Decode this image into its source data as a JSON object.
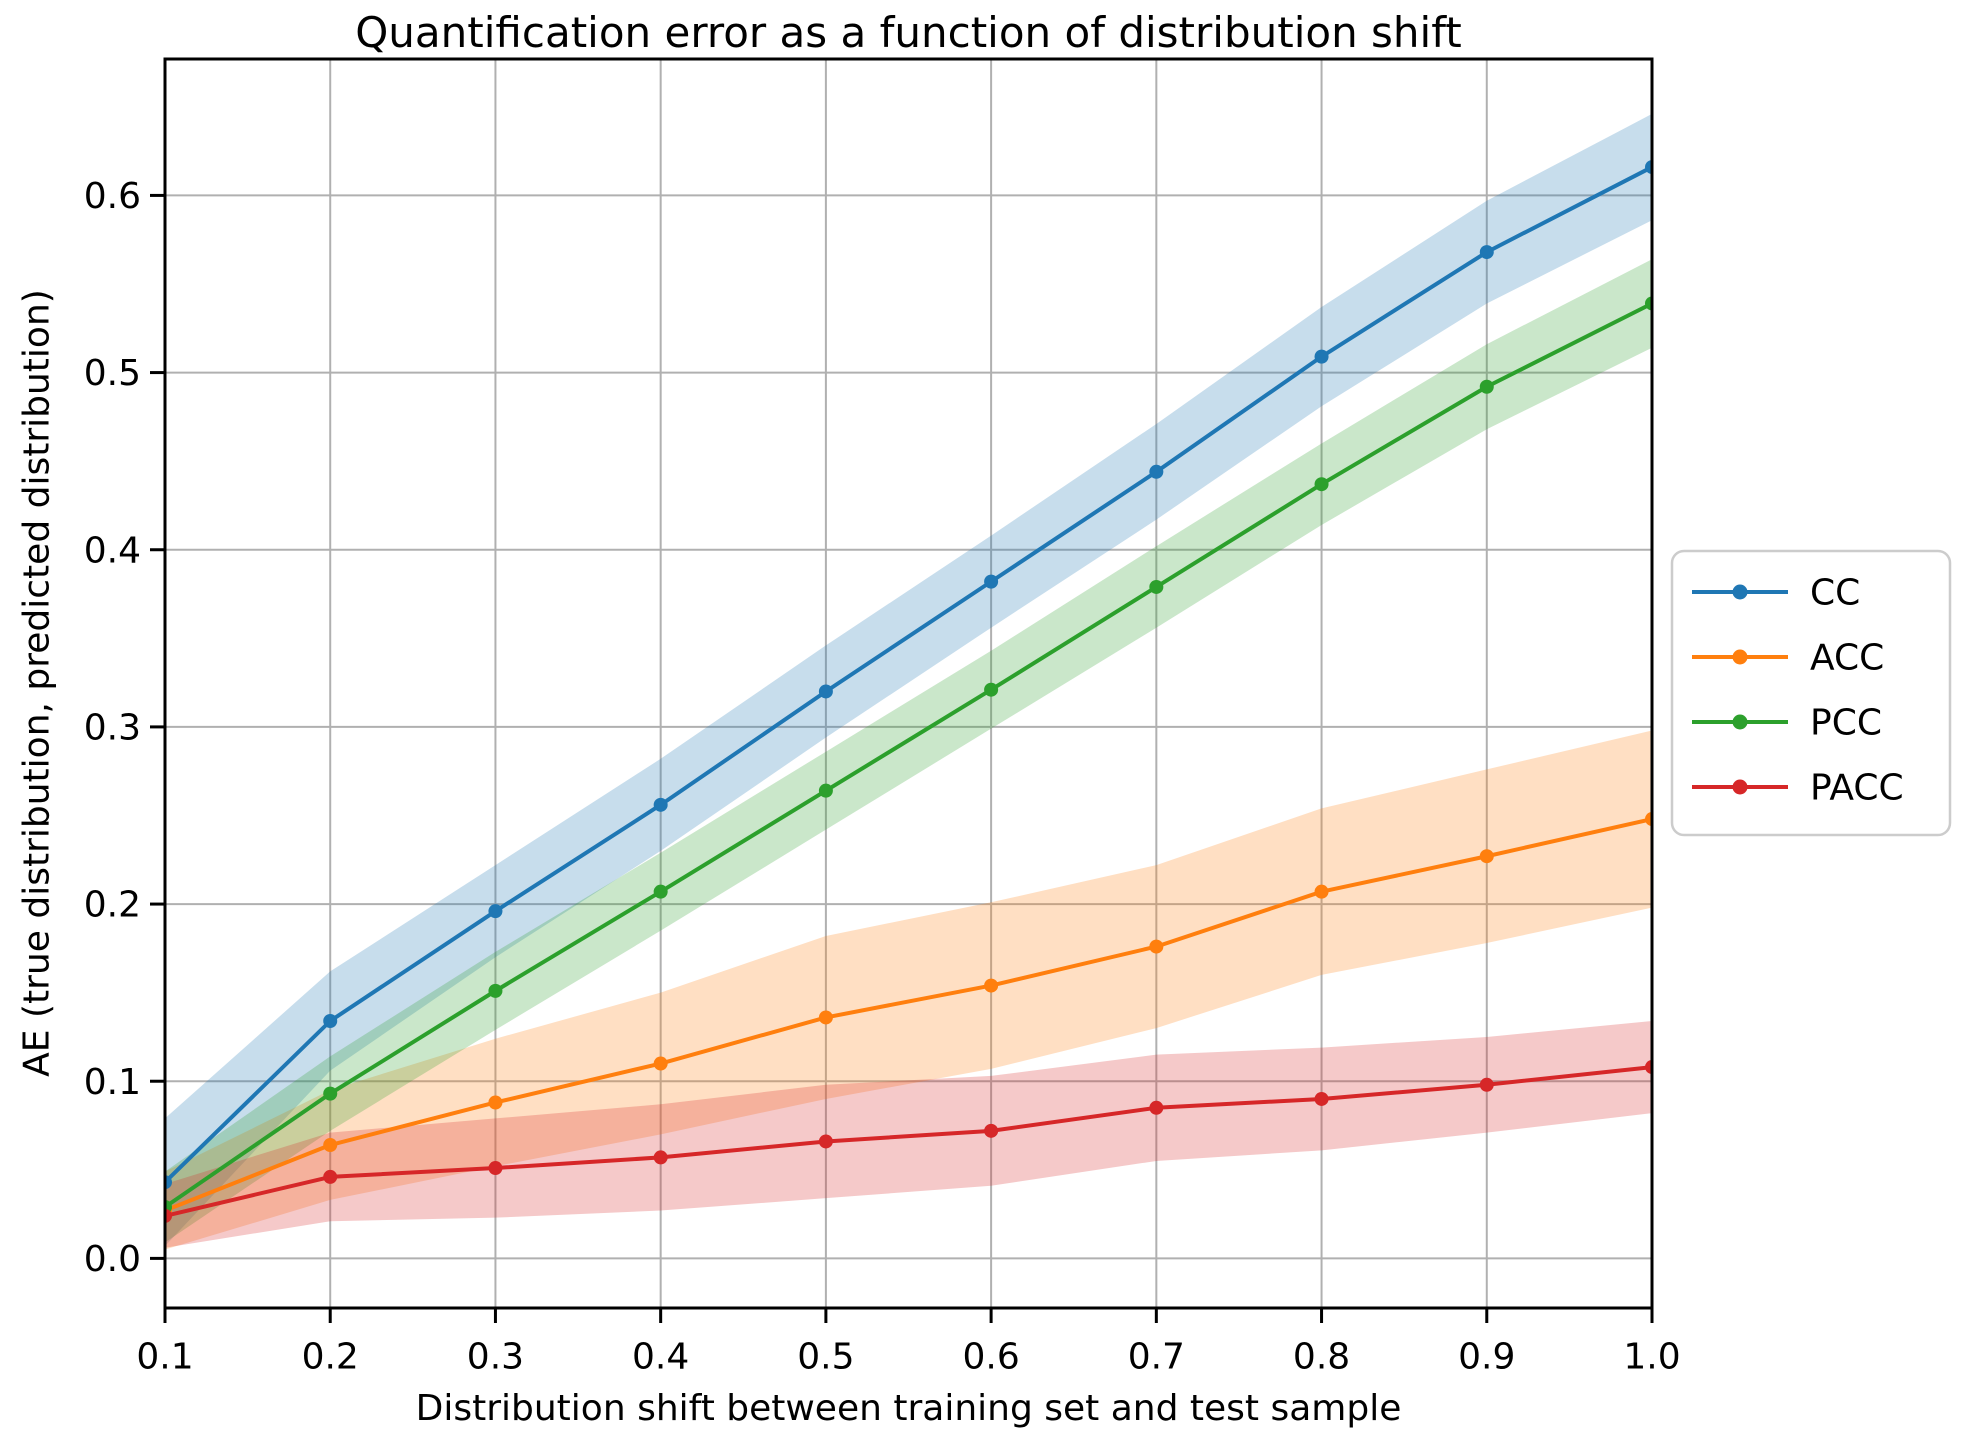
{
  "title": "Quantification error as a function of distribution shift",
  "xlabel": "Distribution shift between training set and test sample",
  "ylabel": "AE (true distribution, predicted distribution)",
  "legend": {
    "entries": [
      "CC",
      "ACC",
      "PCC",
      "PACC"
    ]
  },
  "chart_data": {
    "type": "line",
    "title": "Quantification error as a function of distribution shift",
    "xlabel": "Distribution shift between training set and test sample",
    "ylabel": "AE (true distribution, predicted distribution)",
    "x": [
      0.1,
      0.2,
      0.3,
      0.4,
      0.5,
      0.6,
      0.7,
      0.8,
      0.9,
      1.0
    ],
    "series": [
      {
        "name": "CC",
        "color": "#1f77b4",
        "values": [
          0.043,
          0.134,
          0.196,
          0.256,
          0.32,
          0.382,
          0.444,
          0.509,
          0.568,
          0.616
        ],
        "band_halfwidth": [
          0.036,
          0.028,
          0.026,
          0.026,
          0.026,
          0.026,
          0.027,
          0.028,
          0.029,
          0.03
        ]
      },
      {
        "name": "ACC",
        "color": "#ff7f0e",
        "values": [
          0.027,
          0.064,
          0.088,
          0.11,
          0.136,
          0.154,
          0.176,
          0.207,
          0.227,
          0.248
        ],
        "band_halfwidth": [
          0.022,
          0.031,
          0.036,
          0.04,
          0.046,
          0.047,
          0.046,
          0.047,
          0.049,
          0.05
        ]
      },
      {
        "name": "PCC",
        "color": "#2ca02c",
        "values": [
          0.029,
          0.093,
          0.151,
          0.207,
          0.264,
          0.321,
          0.379,
          0.437,
          0.492,
          0.539
        ],
        "band_halfwidth": [
          0.02,
          0.021,
          0.022,
          0.022,
          0.022,
          0.022,
          0.023,
          0.023,
          0.024,
          0.025
        ]
      },
      {
        "name": "PACC",
        "color": "#d62728",
        "values": [
          0.024,
          0.046,
          0.051,
          0.057,
          0.066,
          0.072,
          0.085,
          0.09,
          0.098,
          0.108
        ],
        "band_halfwidth": [
          0.018,
          0.025,
          0.028,
          0.03,
          0.032,
          0.031,
          0.03,
          0.029,
          0.027,
          0.026
        ]
      }
    ],
    "xticks": [
      "0.1",
      "0.2",
      "0.3",
      "0.4",
      "0.5",
      "0.6",
      "0.7",
      "0.8",
      "0.9",
      "1.0"
    ],
    "yticks": [
      "0.0",
      "0.1",
      "0.2",
      "0.3",
      "0.4",
      "0.5",
      "0.6"
    ],
    "xlim": [
      0.1,
      1.0
    ],
    "ylim": [
      -0.028,
      0.677
    ],
    "grid": true,
    "grid_color": "#b0b0b0",
    "band_alpha": 0.25,
    "legend_position": "right-outside",
    "legend_entries": [
      "CC",
      "ACC",
      "PCC",
      "PACC"
    ]
  }
}
